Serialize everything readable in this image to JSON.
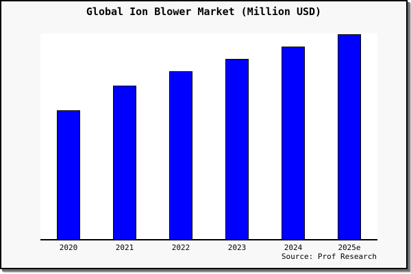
{
  "window": {
    "background": "#f8f8f8",
    "border_color": "#000000",
    "shadow_color": "#989898"
  },
  "chart_data": {
    "type": "bar",
    "title": "Global Ion Blower Market (Million USD)",
    "categories": [
      "2020",
      "2021",
      "2022",
      "2023",
      "2024",
      "2025e"
    ],
    "values": [
      63,
      75,
      82,
      88,
      94,
      100
    ],
    "xlabel": "",
    "ylabel": "",
    "ylim": [
      0,
      100.7
    ],
    "y_axis_visible": false,
    "grid": false,
    "legend": false,
    "bar_color": "#0000ff",
    "bar_edge_color": "#000000",
    "axis_line_color": "#000000",
    "plot_background": "#ffffff"
  },
  "source": {
    "label": "Source: Prof Research"
  }
}
